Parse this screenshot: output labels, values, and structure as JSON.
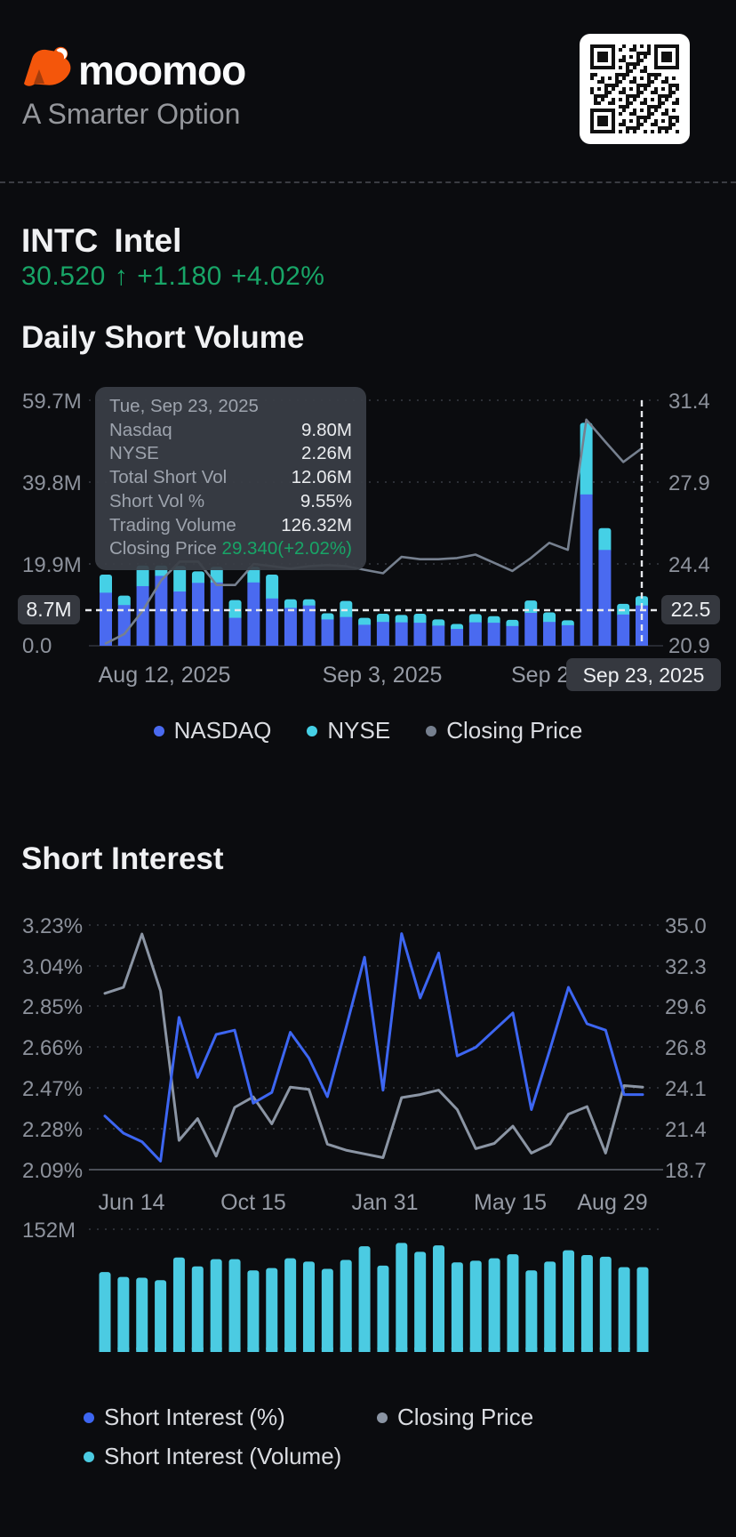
{
  "header": {
    "brand": "moomoo",
    "tagline": "A Smarter Option"
  },
  "stock": {
    "ticker": "INTC",
    "name": "Intel",
    "price": "30.520",
    "direction_icon": "↑",
    "change": "+1.180",
    "change_pct": "+4.02%"
  },
  "tooltip": {
    "date": "Tue, Sep 23, 2025",
    "rows": [
      {
        "label": "Nasdaq",
        "value": "9.80M"
      },
      {
        "label": "NYSE",
        "value": "2.26M"
      },
      {
        "label": "Total Short Vol",
        "value": "12.06M"
      },
      {
        "label": "Short Vol %",
        "value": "9.55%"
      },
      {
        "label": "Trading Volume",
        "value": "126.32M"
      },
      {
        "label": "Closing Price",
        "value": "29.340(+2.02%)"
      }
    ]
  },
  "colors": {
    "brand_orange": "#f4560b",
    "up_green": "#18a567",
    "nasdaq_blue": "#4a6af0",
    "nyse_cyan": "#45d0e6",
    "closing_gray_1": "#76808f",
    "si_blue": "#3d66f2",
    "closing_gray_2": "#8b95a4",
    "si_volume_cyan": "#4bcbe2"
  },
  "chart_data": [
    {
      "type": "bar",
      "title": "Daily Short Volume",
      "legend": [
        "NASDAQ",
        "NYSE",
        "Closing Price"
      ],
      "x_tick_labels": [
        "Aug 12, 2025",
        "Sep 3, 2025",
        "Sep 2"
      ],
      "selected_date_label": "Sep 23, 2025",
      "left_axis": {
        "ticks": [
          "59.7M",
          "39.8M",
          "19.9M",
          "0.0"
        ],
        "badge": "8.7M",
        "min": 0,
        "max": 59.7,
        "unit": "M shares"
      },
      "right_axis": {
        "ticks": [
          "31.4",
          "27.9",
          "24.4",
          "20.9"
        ],
        "badge": "22.5",
        "min": 20.9,
        "max": 31.4
      },
      "crosshair": {
        "h_value_m": 8.7,
        "selected_index": 29
      },
      "series": [
        {
          "name": "NASDAQ",
          "type": "bar",
          "unit": "M",
          "values": [
            12.9,
            9.9,
            14.5,
            17.0,
            13.2,
            15.3,
            15.4,
            6.8,
            15.4,
            11.5,
            9.2,
            9.8,
            6.4,
            7.0,
            5.1,
            5.8,
            5.7,
            5.6,
            4.9,
            4.1,
            5.7,
            5.6,
            4.8,
            8.0,
            5.8,
            5.0,
            36.8,
            23.3,
            7.6,
            9.8
          ]
        },
        {
          "name": "NYSE",
          "type": "bar",
          "unit": "M",
          "values": [
            4.4,
            2.3,
            5.0,
            2.5,
            6.2,
            2.8,
            3.8,
            4.3,
            3.8,
            5.8,
            2.1,
            1.5,
            1.5,
            3.9,
            1.7,
            2.0,
            1.8,
            2.2,
            1.5,
            1.2,
            2.0,
            1.6,
            1.5,
            3.0,
            2.3,
            1.2,
            17.4,
            5.3,
            2.6,
            2.26
          ]
        },
        {
          "name": "Closing Price",
          "type": "line",
          "values": [
            21.0,
            21.4,
            22.4,
            23.7,
            24.5,
            24.5,
            23.5,
            23.5,
            24.4,
            24.3,
            24.2,
            24.3,
            24.35,
            24.3,
            24.15,
            24.0,
            24.7,
            24.6,
            24.6,
            24.65,
            24.8,
            24.45,
            24.1,
            24.65,
            25.3,
            25.0,
            30.57,
            29.65,
            28.76,
            29.34
          ]
        }
      ]
    },
    {
      "type": "line",
      "title": "Short Interest",
      "legend": [
        "Short Interest (%)",
        "Closing Price",
        "Short Interest (Volume)"
      ],
      "x_tick_labels": [
        "Jun 14",
        "Oct 15",
        "Jan 31",
        "May 15",
        "Aug 29"
      ],
      "left_axis": {
        "ticks": [
          "3.23%",
          "3.04%",
          "2.85%",
          "2.66%",
          "2.47%",
          "2.28%",
          "2.09%"
        ],
        "min": 2.09,
        "max": 3.23
      },
      "right_axis": {
        "ticks": [
          "35.0",
          "32.3",
          "29.6",
          "26.8",
          "24.1",
          "21.4",
          "18.7"
        ],
        "min": 18.7,
        "max": 35.0
      },
      "volume_axis": {
        "tick": "152M",
        "max": 152
      },
      "series": [
        {
          "name": "Short Interest (%)",
          "type": "line",
          "values": [
            2.34,
            2.26,
            2.22,
            2.13,
            2.8,
            2.52,
            2.72,
            2.74,
            2.4,
            2.45,
            2.73,
            2.61,
            2.43,
            2.75,
            3.08,
            2.46,
            3.19,
            2.89,
            3.1,
            2.62,
            2.66,
            2.74,
            2.82,
            2.37,
            2.65,
            2.94,
            2.77,
            2.74,
            2.44,
            2.44
          ]
        },
        {
          "name": "Closing Price",
          "type": "line",
          "values": [
            30.45,
            30.85,
            34.4,
            30.6,
            20.65,
            22.1,
            19.6,
            22.85,
            23.55,
            21.75,
            24.2,
            24.05,
            20.4,
            20.0,
            19.75,
            19.5,
            23.5,
            23.7,
            24.0,
            22.7,
            20.1,
            20.45,
            21.6,
            19.8,
            20.4,
            22.4,
            22.9,
            19.8,
            24.3,
            24.2
          ]
        },
        {
          "name": "Short Interest (Volume)",
          "type": "bar",
          "unit": "M",
          "values": [
            99,
            93,
            92,
            89,
            117,
            106,
            115,
            115,
            101,
            104,
            116,
            112,
            103,
            114,
            131,
            107,
            135,
            124,
            132,
            111,
            113,
            116,
            121,
            101,
            112,
            126,
            120,
            118,
            105,
            105
          ]
        }
      ]
    }
  ],
  "section_titles": {
    "chart1": "Daily Short Volume",
    "chart2": "Short Interest"
  }
}
